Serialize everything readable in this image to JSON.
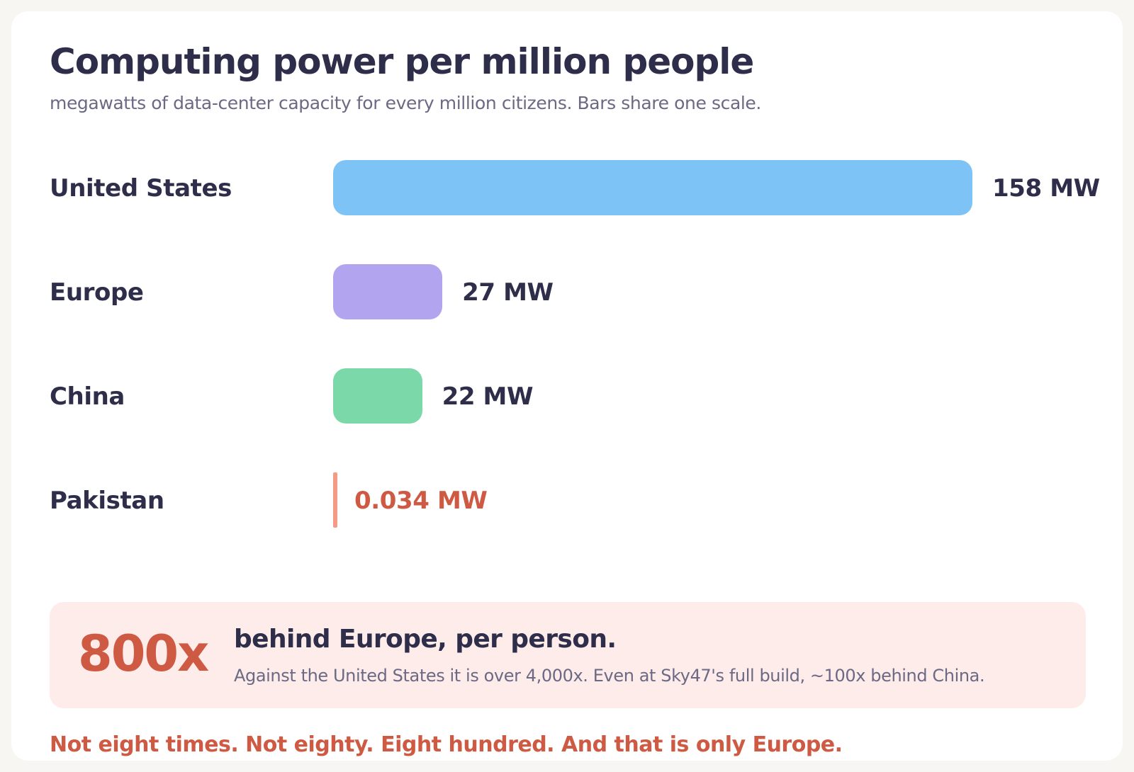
{
  "chart_data": {
    "type": "bar",
    "orientation": "horizontal",
    "title": "Computing power per million people",
    "subtitle": "megawatts of data-center capacity for every million citizens. Bars share one scale.",
    "unit": "MW",
    "categories": [
      "United States",
      "Europe",
      "China",
      "Pakistan"
    ],
    "values": [
      158,
      27,
      22,
      0.034
    ],
    "value_labels": [
      "158 MW",
      "27 MW",
      "22 MW",
      "0.034 MW"
    ],
    "colors": [
      "#7dc3f5",
      "#b3a4f0",
      "#7ad8a9",
      "#f59a87"
    ],
    "label_colors": [
      "#2e2d4a",
      "#2e2d4a",
      "#2e2d4a",
      "#cf5a43"
    ],
    "xlim": [
      0,
      158
    ],
    "grid": false,
    "legend": "none"
  },
  "callout": {
    "big": "800x",
    "headline": "behind Europe, per person.",
    "detail": "Against the United States it is over 4,000x. Even at Sky47's full build, ~100x behind China."
  },
  "footer_note": "Not eight times. Not eighty. Eight hundred. And that is only Europe."
}
